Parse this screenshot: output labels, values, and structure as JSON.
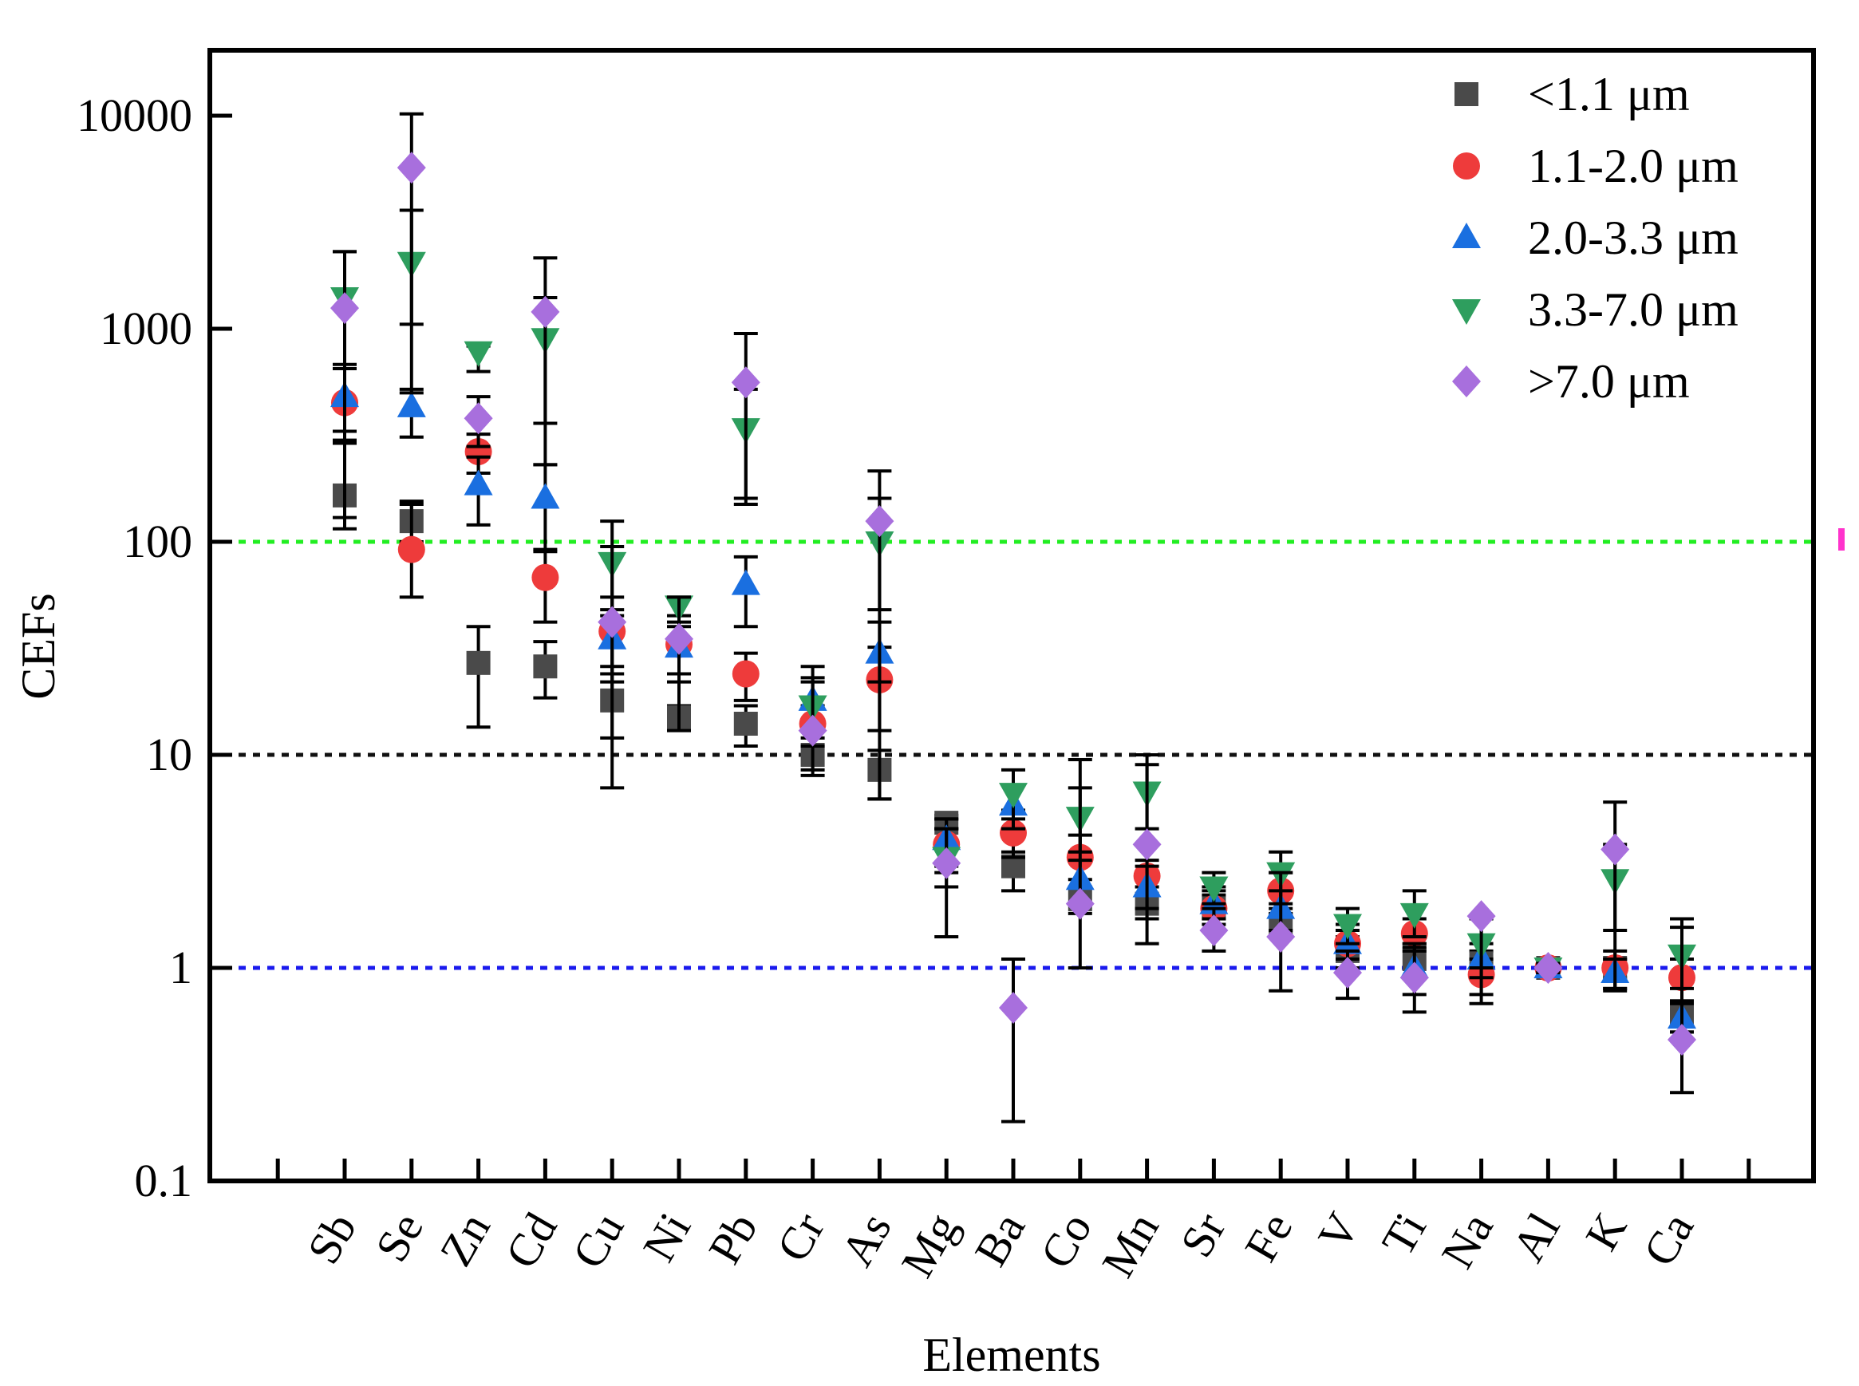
{
  "chart_data": {
    "type": "scatter",
    "title": "",
    "xlabel": "Elements",
    "ylabel": "CEFs",
    "yscale": "log",
    "ylim": [
      0.1,
      20000
    ],
    "yticks": [
      {
        "value": 0.1,
        "label": "0.1"
      },
      {
        "value": 1,
        "label": "1"
      },
      {
        "value": 10,
        "label": "10"
      },
      {
        "value": 100,
        "label": "100"
      },
      {
        "value": 1000,
        "label": "1000"
      },
      {
        "value": 10000,
        "label": "10000"
      }
    ],
    "categories": [
      "Sb",
      "Se",
      "Zn",
      "Cd",
      "Cu",
      "Ni",
      "Pb",
      "Cr",
      "As",
      "Mg",
      "Ba",
      "Co",
      "Mn",
      "Sr",
      "Fe",
      "V",
      "Ti",
      "Na",
      "Al",
      "K",
      "Ca"
    ],
    "reference_lines": [
      {
        "value": 100,
        "color": "#22ee22"
      },
      {
        "value": 10,
        "color": "#111111"
      },
      {
        "value": 1,
        "color": "#1a1aee"
      }
    ],
    "legend_position": "top-right",
    "series": [
      {
        "name": "<1.1 μm",
        "marker": "square",
        "color": "#4a4a4a",
        "values": [
          165,
          125,
          27,
          26,
          18,
          15,
          14,
          10,
          8.5,
          4.8,
          3.0,
          2.1,
          2.0,
          1.9,
          1.6,
          1.2,
          1.1,
          1.05,
          1.0,
          1.0,
          0.6
        ],
        "err": [
          [
            115,
            300
          ],
          [
            100,
            155
          ],
          [
            13.5,
            40
          ],
          [
            18.5,
            34
          ],
          [
            12,
            26
          ],
          [
            13.5,
            17
          ],
          [
            11,
            17
          ],
          [
            8,
            12
          ],
          [
            6.2,
            10.5
          ],
          [
            4.5,
            5.2
          ],
          [
            2.3,
            3.5
          ],
          [
            1.8,
            2.4
          ],
          [
            1.7,
            2.4
          ],
          [
            1.6,
            2.2
          ],
          [
            1.4,
            1.9
          ],
          [
            1.0,
            1.4
          ],
          [
            0.9,
            1.3
          ],
          [
            0.9,
            1.2
          ],
          [
            0.95,
            1.05
          ],
          [
            0.9,
            1.1
          ],
          [
            0.5,
            0.7
          ]
        ]
      },
      {
        "name": "1.1-2.0 μm",
        "marker": "circle",
        "color": "#ee3b3b",
        "values": [
          450,
          92,
          265,
          68,
          38,
          33,
          24,
          14,
          22.5,
          3.8,
          4.3,
          3.3,
          2.7,
          1.9,
          2.3,
          1.3,
          1.45,
          0.93,
          1.0,
          1.0,
          0.9
        ],
        "err": [
          [
            290,
            650
          ],
          [
            55,
            150
          ],
          [
            210,
            320
          ],
          [
            42,
            92
          ],
          [
            22,
            55
          ],
          [
            22,
            45
          ],
          [
            18,
            30
          ],
          [
            11,
            17
          ],
          [
            13,
            32
          ],
          [
            2.8,
            5.0
          ],
          [
            3.3,
            5.5
          ],
          [
            2.6,
            4.2
          ],
          [
            2.2,
            3.2
          ],
          [
            1.5,
            2.3
          ],
          [
            1.8,
            2.8
          ],
          [
            1.1,
            1.6
          ],
          [
            1.2,
            1.7
          ],
          [
            0.75,
            1.1
          ],
          [
            0.95,
            1.05
          ],
          [
            0.8,
            1.2
          ],
          [
            0.7,
            1.1
          ]
        ]
      },
      {
        "name": "2.0-3.3 μm",
        "marker": "triangle-up",
        "color": "#1a6fe0",
        "values": [
          480,
          430,
          185,
          160,
          35,
          32,
          63,
          18,
          30,
          4.0,
          5.8,
          2.6,
          2.4,
          2.0,
          1.9,
          1.3,
          1.0,
          1.1,
          1.0,
          0.95,
          0.58
        ],
        "err": [
          [
            330,
            680
          ],
          [
            310,
            520
          ],
          [
            120,
            250
          ],
          [
            90,
            230
          ],
          [
            24,
            48
          ],
          [
            24,
            42
          ],
          [
            40,
            85
          ],
          [
            13,
            23
          ],
          [
            22,
            42
          ],
          [
            3.0,
            5.0
          ],
          [
            4.5,
            7.2
          ],
          [
            2.0,
            3.2
          ],
          [
            1.9,
            3.0
          ],
          [
            1.7,
            2.4
          ],
          [
            1.5,
            2.3
          ],
          [
            1.1,
            1.5
          ],
          [
            0.75,
            1.3
          ],
          [
            0.9,
            1.3
          ],
          [
            0.95,
            1.05
          ],
          [
            0.8,
            1.1
          ],
          [
            0.5,
            0.68
          ]
        ]
      },
      {
        "name": "3.3-7.0 μm",
        "marker": "triangle-down",
        "color": "#2e9e5e",
        "values": [
          1400,
          2050,
          780,
          900,
          80,
          50,
          340,
          17,
          100,
          3.3,
          6.6,
          5.1,
          6.7,
          2.4,
          2.8,
          1.6,
          1.8,
          1.3,
          1.0,
          2.6,
          1.15
        ],
        "err": [
          [
            650,
            2300
          ],
          [
            1050,
            3600
          ],
          [
            630,
            830
          ],
          [
            360,
            1400
          ],
          [
            45,
            125
          ],
          [
            40,
            55
          ],
          [
            160,
            520
          ],
          [
            13,
            22
          ],
          [
            48,
            160
          ],
          [
            2.4,
            4.5
          ],
          [
            5.0,
            8.5
          ],
          [
            3.5,
            7.0
          ],
          [
            4.5,
            9.0
          ],
          [
            2.0,
            2.8
          ],
          [
            2.0,
            3.5
          ],
          [
            1.3,
            1.9
          ],
          [
            1.4,
            2.3
          ],
          [
            1.0,
            1.7
          ],
          [
            0.95,
            1.05
          ],
          [
            1.5,
            3.8
          ],
          [
            0.8,
            1.55
          ]
        ]
      },
      {
        "name": ">7.0 μm",
        "marker": "diamond",
        "color": "#a86fdd",
        "values": [
          1250,
          5700,
          380,
          1200,
          42,
          35,
          560,
          13,
          125,
          3.1,
          0.65,
          2.0,
          3.8,
          1.5,
          1.4,
          0.95,
          0.9,
          1.75,
          1.0,
          3.6,
          0.46
        ],
        "err": [
          [
            130,
            2300
          ],
          [
            500,
            10200
          ],
          [
            280,
            480
          ],
          [
            230,
            2150
          ],
          [
            7,
            95
          ],
          [
            13,
            55
          ],
          [
            150,
            950
          ],
          [
            8.5,
            26
          ],
          [
            6.2,
            215
          ],
          [
            1.4,
            4.5
          ],
          [
            0.19,
            1.1
          ],
          [
            1.0,
            9.5
          ],
          [
            1.3,
            10
          ],
          [
            1.2,
            1.9
          ],
          [
            0.78,
            2.8
          ],
          [
            0.72,
            1.2
          ],
          [
            0.62,
            1.25
          ],
          [
            0.68,
            1.75
          ],
          [
            0.95,
            1.05
          ],
          [
            0.78,
            6.0
          ],
          [
            0.26,
            1.7
          ]
        ]
      }
    ]
  }
}
